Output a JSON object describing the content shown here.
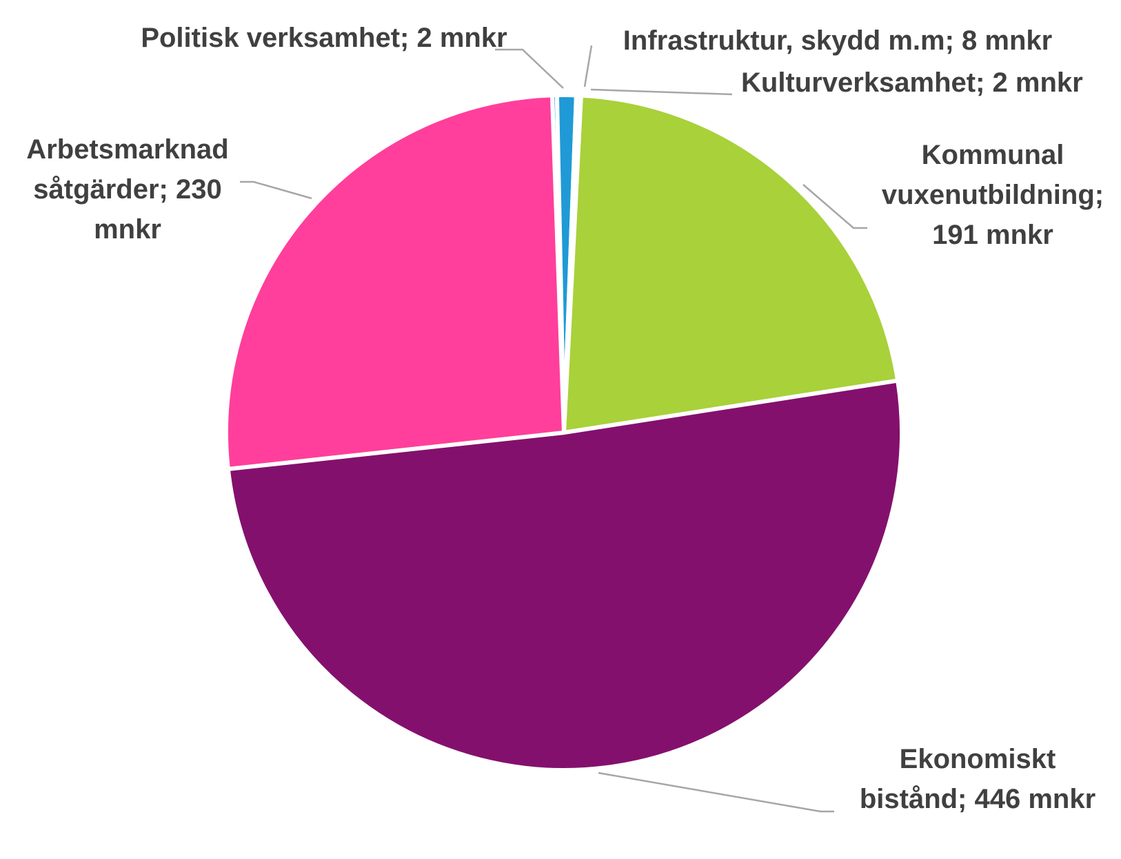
{
  "chart_data": {
    "type": "pie",
    "unit": "mnkr",
    "title": "",
    "slices": [
      {
        "name": "Politisk verksamhet",
        "value": 2,
        "color": "#5a9bd5",
        "label_lines": [
          "Politisk verksamhet; 2 mnkr"
        ]
      },
      {
        "name": "Infrastruktur, skydd m.m",
        "value": 8,
        "color": "#1f9ad6",
        "label_lines": [
          "Infrastruktur, skydd m.m; 8 mnkr"
        ]
      },
      {
        "name": "Kulturverksamhet",
        "value": 2,
        "color": "#f2f2f2",
        "label_lines": [
          "Kulturverksamhet; 2 mnkr"
        ]
      },
      {
        "name": "Kommunal vuxenutbildning",
        "value": 191,
        "color": "#a8d13a",
        "label_lines": [
          "Kommunal",
          "vuxenutbildning;",
          "191 mnkr"
        ]
      },
      {
        "name": "Ekonomiskt bistånd",
        "value": 446,
        "color": "#84106d",
        "label_lines": [
          "Ekonomiskt",
          "bistånd; 446 mnkr"
        ]
      },
      {
        "name": "Arbetsmarknad såtgärder",
        "value": 230,
        "color": "#ff3f9b",
        "label_lines": [
          "Arbetsmarknad",
          "såtgärder; 230",
          "mnkr"
        ]
      }
    ]
  }
}
